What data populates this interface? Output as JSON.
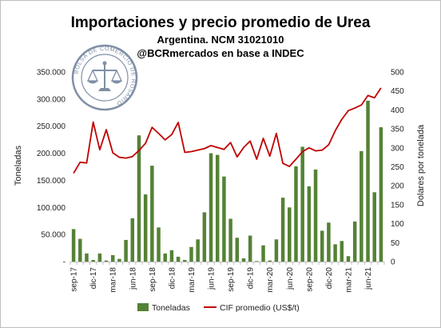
{
  "chart_data": {
    "type": "bar+line",
    "title": "Importaciones y precio promedio de Urea",
    "subtitle1": "Argentina. NCM 31021010",
    "subtitle2": "@BCRmercados en base a INDEC",
    "logo_text": "BOLSA DE COMERCIO DE ROSARIO",
    "ylabel_left": "Toneladas",
    "ylabel_right": "Dolares por tonelada",
    "ylim_left": [
      0,
      350000
    ],
    "ylim_right": [
      0,
      500
    ],
    "yticks_left": [
      "-",
      "50.000",
      "100.000",
      "150.000",
      "200.000",
      "250.000",
      "300.000",
      "350.000"
    ],
    "yticks_right": [
      "0",
      "50",
      "100",
      "150",
      "200",
      "250",
      "300",
      "350",
      "400",
      "450",
      "500"
    ],
    "x_tick_labels": [
      "sep-17",
      "dic-17",
      "mar-18",
      "jun-18",
      "sep-18",
      "dic-18",
      "mar-19",
      "jun-19",
      "sep-19",
      "dic-19",
      "mar-20",
      "jun-20",
      "sep-20",
      "dic-20",
      "mar-21",
      "jun-21"
    ],
    "x_tick_every": 3,
    "months": [
      "sep-17",
      "oct-17",
      "nov-17",
      "dic-17",
      "ene-18",
      "feb-18",
      "mar-18",
      "abr-18",
      "may-18",
      "jun-18",
      "jul-18",
      "ago-18",
      "sep-18",
      "oct-18",
      "nov-18",
      "dic-18",
      "ene-19",
      "feb-19",
      "mar-19",
      "abr-19",
      "may-19",
      "jun-19",
      "jul-19",
      "ago-19",
      "sep-19",
      "oct-19",
      "nov-19",
      "dic-19",
      "ene-20",
      "feb-20",
      "mar-20",
      "abr-20",
      "may-20",
      "jun-20",
      "jul-20",
      "ago-20",
      "sep-20",
      "oct-20",
      "nov-20",
      "dic-20",
      "ene-21",
      "feb-21",
      "mar-21",
      "abr-21",
      "may-21",
      "jun-21",
      "jul-21",
      "ago-21"
    ],
    "series": [
      {
        "name": "Toneladas",
        "type": "bar",
        "axis": "left",
        "color": "#548235",
        "values": [
          60000,
          42000,
          15000,
          3000,
          15000,
          2000,
          12000,
          5000,
          40000,
          80000,
          233000,
          124000,
          177000,
          63000,
          15000,
          21000,
          9000,
          3000,
          27000,
          41000,
          91000,
          200000,
          197000,
          157000,
          79000,
          44000,
          6000,
          48000,
          1000,
          30000,
          2000,
          41000,
          118000,
          100000,
          176000,
          212000,
          139000,
          170000,
          57000,
          72000,
          32000,
          38000,
          10000,
          74000,
          204000,
          297000,
          128000,
          248000
        ]
      },
      {
        "name": "CIF promedio (US$/t)",
        "type": "line",
        "axis": "right",
        "color": "#c00000",
        "values": [
          233,
          262,
          260,
          368,
          295,
          348,
          287,
          275,
          273,
          277,
          293,
          312,
          354,
          338,
          321,
          335,
          367,
          288,
          290,
          294,
          298,
          306,
          301,
          296,
          314,
          276,
          301,
          318,
          270,
          325,
          278,
          338,
          259,
          251,
          270,
          290,
          300,
          292,
          294,
          308,
          345,
          375,
          398,
          405,
          413,
          438,
          432,
          458
        ]
      }
    ],
    "legend": {
      "placement": "bottom"
    },
    "grid": false
  }
}
